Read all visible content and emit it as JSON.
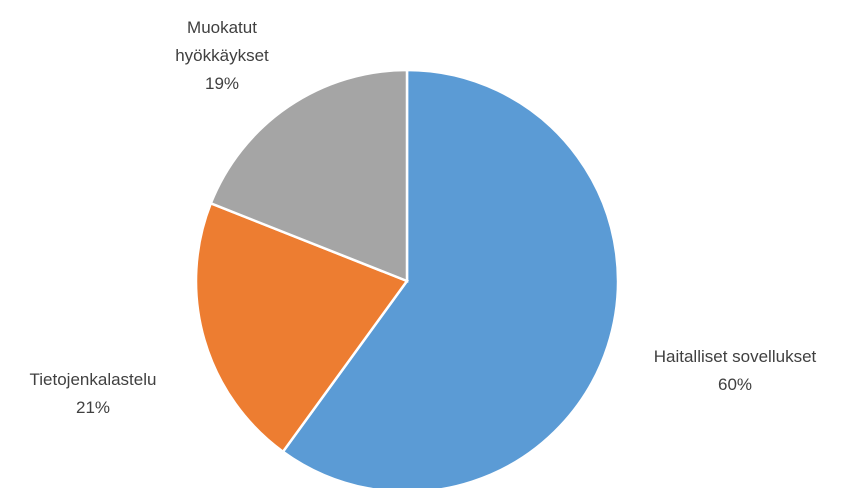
{
  "chart_data": {
    "type": "pie",
    "categories": [
      "Haitalliset sovellukset",
      "Tietojenkalastelu",
      "Muokatut hyökkäykset"
    ],
    "values": [
      60,
      21,
      19
    ],
    "value_labels": [
      "60%",
      "21%",
      "19%"
    ],
    "colors": [
      "#5b9bd5",
      "#ed7d31",
      "#a5a5a5"
    ]
  }
}
